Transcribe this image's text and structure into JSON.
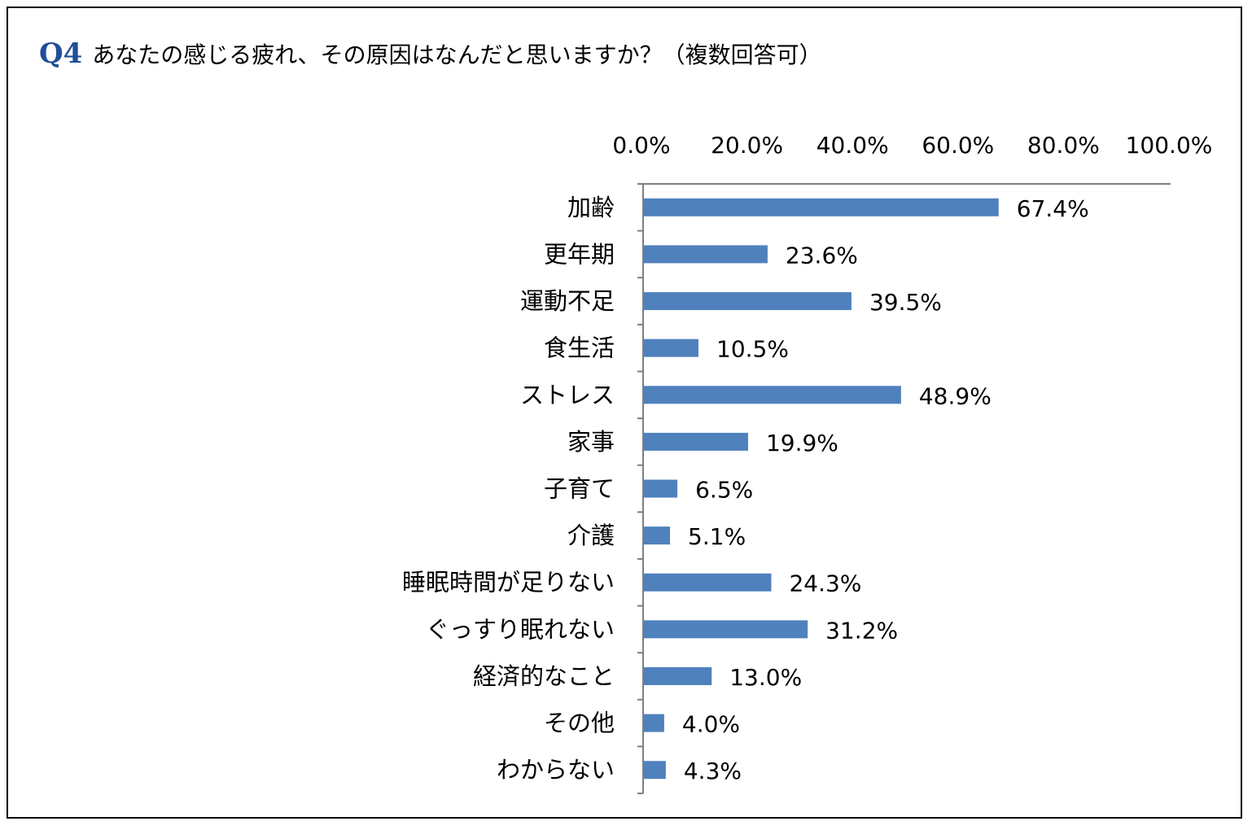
{
  "question": {
    "number": "Q4",
    "text": "あなたの感じる疲れ、その原因はなんだと思いますか？（複数回答可）"
  },
  "chart_data": {
    "type": "bar",
    "orientation": "horizontal",
    "bar_color": "#4f81bd",
    "xlim": [
      0,
      100
    ],
    "tick_labels": [
      "0.0%",
      "20.0%",
      "40.0%",
      "60.0%",
      "80.0%",
      "100.0%"
    ],
    "categories": [
      "加齢",
      "更年期",
      "運動不足",
      "食生活",
      "ストレス",
      "家事",
      "子育て",
      "介護",
      "睡眠時間が足りない",
      "ぐっすり眠れない",
      "経済的なこと",
      "その他",
      "わからない"
    ],
    "values": [
      67.4,
      23.6,
      39.5,
      10.5,
      48.9,
      19.9,
      6.5,
      5.1,
      24.3,
      31.2,
      13.0,
      4.0,
      4.3
    ],
    "value_labels": [
      "67.4%",
      "23.6%",
      "39.5%",
      "10.5%",
      "48.9%",
      "19.9%",
      "6.5%",
      "5.1%",
      "24.3%",
      "31.2%",
      "13.0%",
      "4.0%",
      "4.3%"
    ],
    "grid": false,
    "legend": "none"
  }
}
